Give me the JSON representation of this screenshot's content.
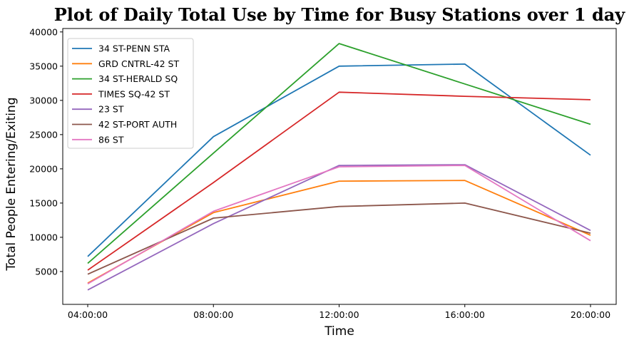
{
  "chart_data": {
    "type": "line",
    "title": "Plot of Daily Total Use by Time for Busy Stations over 1 day",
    "xlabel": "Time",
    "ylabel": "Total People Entering/Exiting",
    "categories": [
      "04:00:00",
      "08:00:00",
      "12:00:00",
      "16:00:00",
      "20:00:00"
    ],
    "yticks": [
      5000,
      10000,
      15000,
      20000,
      25000,
      30000,
      35000,
      40000
    ],
    "ylim": [
      200,
      40500
    ],
    "grid": false,
    "legend_position": "top-left",
    "series": [
      {
        "name": "34 ST-PENN STA",
        "color": "#1f77b4",
        "values": [
          7200,
          24700,
          35000,
          35300,
          22000
        ]
      },
      {
        "name": "GRD CNTRL-42 ST",
        "color": "#ff7f0e",
        "values": [
          3300,
          13600,
          18200,
          18300,
          10300
        ]
      },
      {
        "name": "34 ST-HERALD SQ",
        "color": "#2ca02c",
        "values": [
          6200,
          22300,
          38300,
          32400,
          26500
        ]
      },
      {
        "name": "TIMES SQ-42 ST",
        "color": "#d62728",
        "values": [
          5200,
          18000,
          31200,
          30600,
          30100
        ]
      },
      {
        "name": "23 ST",
        "color": "#9467bd",
        "values": [
          2300,
          12000,
          20500,
          20600,
          11000
        ]
      },
      {
        "name": "42 ST-PORT AUTH",
        "color": "#8c564b",
        "values": [
          4600,
          12800,
          14500,
          15000,
          10600
        ]
      },
      {
        "name": "86 ST",
        "color": "#e377c2",
        "values": [
          3200,
          13800,
          20300,
          20500,
          9500
        ]
      }
    ]
  }
}
